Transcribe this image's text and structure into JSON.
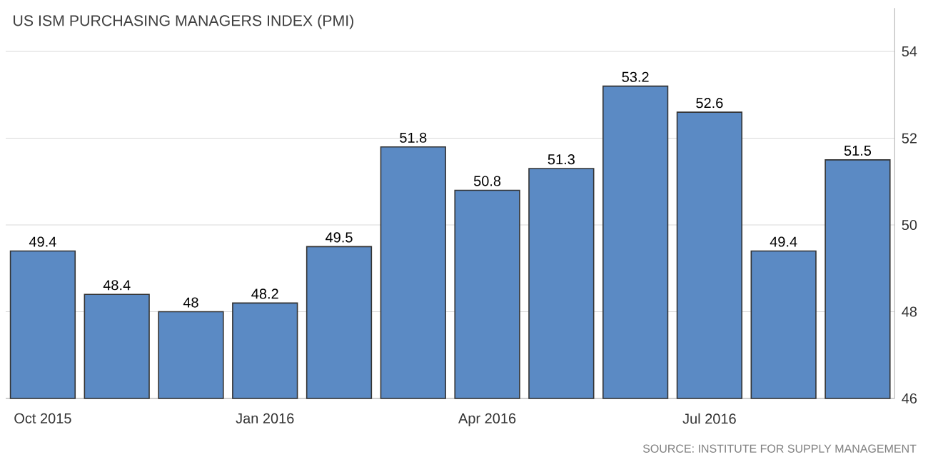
{
  "chart_data": {
    "type": "bar",
    "title": "US ISM PURCHASING MANAGERS INDEX (PMI)",
    "categories": [
      "Oct 2015",
      null,
      null,
      "Jan 2016",
      null,
      null,
      "Apr 2016",
      null,
      null,
      "Jul 2016",
      null,
      null
    ],
    "values": [
      49.4,
      48.4,
      48,
      48.2,
      49.5,
      51.8,
      50.8,
      51.3,
      53.2,
      52.6,
      49.4,
      51.5
    ],
    "color": "#5b8ac4",
    "ylim": [
      46,
      55
    ],
    "yticks": [
      46,
      48,
      50,
      52,
      54
    ],
    "grid": "y",
    "data_labels": true,
    "annotations": [
      "SOURCE: INSTITUTE FOR SUPPLY MANAGEMENT"
    ]
  }
}
